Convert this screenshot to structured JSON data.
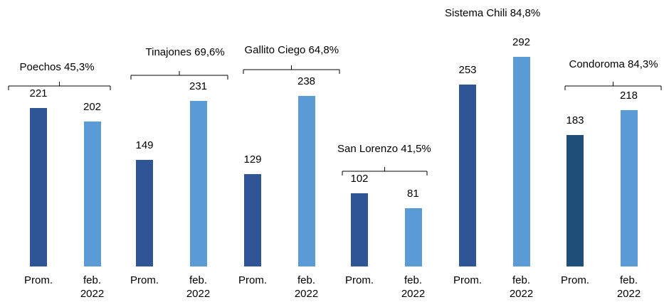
{
  "chart_data": {
    "type": "bar",
    "groups": [
      {
        "name": "Poechos 45,3%",
        "categories": [
          "Prom.",
          "feb. 2022"
        ],
        "values": [
          221,
          202
        ],
        "colors": [
          "#2f5597",
          "#5b9bd5"
        ]
      },
      {
        "name": "Tinajones 69,6%",
        "categories": [
          "Prom.",
          "feb. 2022"
        ],
        "values": [
          149,
          231
        ],
        "colors": [
          "#2f5597",
          "#5b9bd5"
        ]
      },
      {
        "name": "Gallito Ciego 64,8%",
        "categories": [
          "Prom.",
          "feb. 2022"
        ],
        "values": [
          129,
          238
        ],
        "colors": [
          "#2f5597",
          "#5b9bd5"
        ]
      },
      {
        "name": "San Lorenzo 41,5%",
        "categories": [
          "Prom.",
          "feb. 2022"
        ],
        "values": [
          102,
          81
        ],
        "colors": [
          "#2f5597",
          "#5b9bd5"
        ]
      },
      {
        "name": "Sistema Chili 84,8%",
        "categories": [
          "Prom.",
          "feb. 2022"
        ],
        "values": [
          253,
          292
        ],
        "colors": [
          "#2f5597",
          "#5b9bd5"
        ]
      },
      {
        "name": "Condoroma 84,3%",
        "categories": [
          "Prom.",
          "feb. 2022"
        ],
        "values": [
          183,
          218
        ],
        "colors": [
          "#1f4e79",
          "#5b9bd5"
        ]
      }
    ]
  }
}
